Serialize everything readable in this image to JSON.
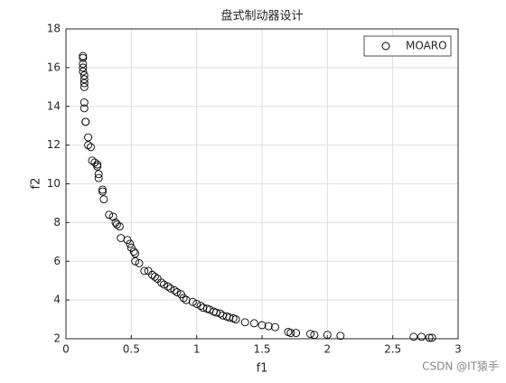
{
  "chart_data": {
    "type": "scatter",
    "title": "盘式制动器设计",
    "x_label": "f1",
    "y_label": "f2",
    "x": [
      0.13,
      0.13,
      0.13,
      0.13,
      0.13,
      0.14,
      0.14,
      0.14,
      0.14,
      0.14,
      0.14,
      0.15,
      0.15,
      0.17,
      0.17,
      0.19,
      0.2,
      0.22,
      0.24,
      0.24,
      0.25,
      0.25,
      0.28,
      0.28,
      0.29,
      0.33,
      0.36,
      0.38,
      0.39,
      0.41,
      0.42,
      0.47,
      0.49,
      0.5,
      0.52,
      0.53,
      0.53,
      0.56,
      0.6,
      0.63,
      0.66,
      0.68,
      0.7,
      0.73,
      0.75,
      0.78,
      0.8,
      0.83,
      0.85,
      0.88,
      0.9,
      0.92,
      0.97,
      1.0,
      1.03,
      1.05,
      1.08,
      1.1,
      1.13,
      1.15,
      1.18,
      1.2,
      1.23,
      1.25,
      1.28,
      1.3,
      1.37,
      1.44,
      1.5,
      1.55,
      1.6,
      1.7,
      1.72,
      1.76,
      1.87,
      1.9,
      2.0,
      2.1,
      2.66,
      2.72,
      2.78,
      2.8
    ],
    "series": [
      {
        "name": "MOARO",
        "color": "#000000",
        "values": [
          16.6,
          16.5,
          16.2,
          16.0,
          15.8,
          15.6,
          15.4,
          15.2,
          15.0,
          14.2,
          13.9,
          13.2,
          13.2,
          12.4,
          12.0,
          11.9,
          11.2,
          11.1,
          11.0,
          10.9,
          10.5,
          10.3,
          9.7,
          9.6,
          9.2,
          8.4,
          8.3,
          8.0,
          7.9,
          7.8,
          7.2,
          7.1,
          6.9,
          6.7,
          6.5,
          6.4,
          6.0,
          5.9,
          5.5,
          5.5,
          5.3,
          5.2,
          5.1,
          4.9,
          4.8,
          4.7,
          4.6,
          4.5,
          4.4,
          4.3,
          4.1,
          4.0,
          3.9,
          3.8,
          3.7,
          3.6,
          3.55,
          3.5,
          3.4,
          3.35,
          3.3,
          3.2,
          3.15,
          3.1,
          3.05,
          3.0,
          2.85,
          2.8,
          2.7,
          2.65,
          2.6,
          2.35,
          2.3,
          2.3,
          2.25,
          2.2,
          2.2,
          2.15,
          2.1,
          2.1,
          2.05,
          2.05
        ]
      }
    ],
    "xlim": [
      0,
      3
    ],
    "ylim": [
      2,
      18
    ],
    "xticks": [
      0,
      0.5,
      1,
      1.5,
      2,
      2.5,
      3
    ],
    "yticks": [
      2,
      4,
      6,
      8,
      10,
      12,
      14,
      16,
      18
    ],
    "grid": true,
    "legend": "top-right"
  },
  "watermark": "CSDN @IT猿手"
}
